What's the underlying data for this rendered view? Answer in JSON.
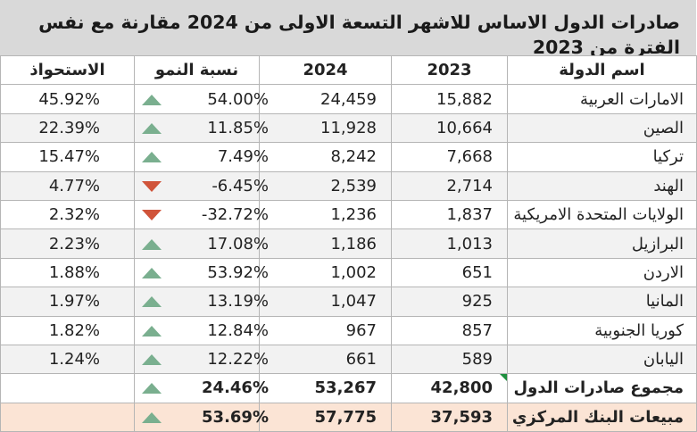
{
  "title": "صادرات الدول الاساس للاشهر التسعة الاولى من 2024 مقارنة مع نفس الفترة من 2023",
  "colors": {
    "up": "#7aaf8f",
    "down": "#d0543a",
    "header_bg": "#d9d9d9",
    "bank_bg": "#fbe4d5"
  },
  "columns": {
    "country": "اسم الدولة",
    "y2023": "2023",
    "y2024": "2024",
    "growth": "نسبة النمو",
    "share": "الاستحواذ"
  },
  "rows": [
    {
      "country": "الامارات العربية",
      "y2023": "15,882",
      "y2024": "24,459",
      "growth": "54.00%",
      "trend": "up",
      "share": "45.92%"
    },
    {
      "country": "الصين",
      "y2023": "10,664",
      "y2024": "11,928",
      "growth": "11.85%",
      "trend": "up",
      "share": "22.39%"
    },
    {
      "country": "تركيا",
      "y2023": "7,668",
      "y2024": "8,242",
      "growth": "7.49%",
      "trend": "up",
      "share": "15.47%"
    },
    {
      "country": "الهند",
      "y2023": "2,714",
      "y2024": "2,539",
      "growth": "-6.45%",
      "trend": "down",
      "share": "4.77%"
    },
    {
      "country": "الولايات المتحدة الامريكية",
      "y2023": "1,837",
      "y2024": "1,236",
      "growth": "-32.72%",
      "trend": "down",
      "share": "2.32%"
    },
    {
      "country": "البرازيل",
      "y2023": "1,013",
      "y2024": "1,186",
      "growth": "17.08%",
      "trend": "up",
      "share": "2.23%"
    },
    {
      "country": "الاردن",
      "y2023": "651",
      "y2024": "1,002",
      "growth": "53.92%",
      "trend": "up",
      "share": "1.88%"
    },
    {
      "country": "المانيا",
      "y2023": "925",
      "y2024": "1,047",
      "growth": "13.19%",
      "trend": "up",
      "share": "1.97%"
    },
    {
      "country": "كوريا الجنوبية",
      "y2023": "857",
      "y2024": "967",
      "growth": "12.84%",
      "trend": "up",
      "share": "1.82%"
    },
    {
      "country": "اليابان",
      "y2023": "589",
      "y2024": "661",
      "growth": "12.22%",
      "trend": "up",
      "share": "1.24%"
    }
  ],
  "total": {
    "country": "مجموع صادرات الدول",
    "y2023": "42,800",
    "y2024": "53,267",
    "growth": "24.46%",
    "trend": "up",
    "share": ""
  },
  "bank": {
    "country": "مبيعات البنك المركزي",
    "y2023": "37,593",
    "y2024": "57,775",
    "growth": "53.69%",
    "trend": "up",
    "share": ""
  }
}
